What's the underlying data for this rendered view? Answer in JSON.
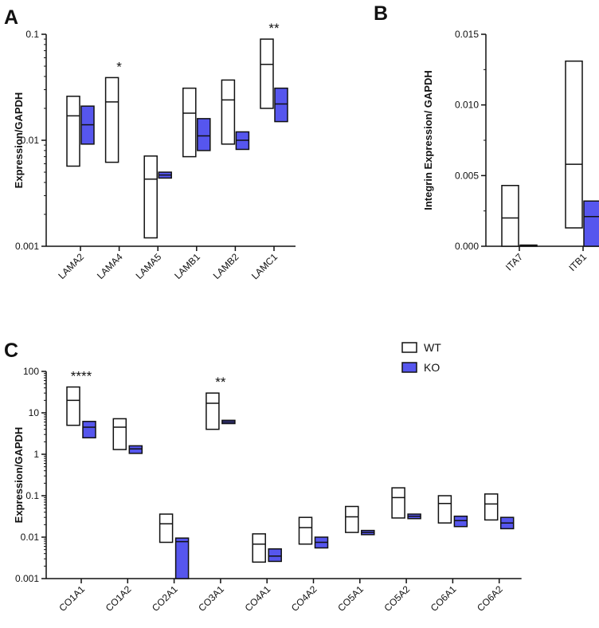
{
  "colors": {
    "wt_fill": "#ffffff",
    "ko_fill": "#5656ee",
    "stroke": "#111111"
  },
  "legend": {
    "wt_label": "WT",
    "ko_label": "KO"
  },
  "chart_data": [
    {
      "panel": "A",
      "type": "floating-bar",
      "scale": "log",
      "ylabel": "Expression/GAPDH",
      "ylim": [
        0.001,
        0.1
      ],
      "yticks": [
        {
          "value": 0.001,
          "label": "0.001"
        },
        {
          "value": 0.01,
          "label": "0.01"
        },
        {
          "value": 0.1,
          "label": "0.1"
        }
      ],
      "categories": [
        "LAMA2",
        "LAMA4",
        "LAMA5",
        "LAMB1",
        "LAMB2",
        "LAMC1"
      ],
      "series": [
        {
          "name": "WT",
          "min": [
            0.0057,
            0.0062,
            0.0012,
            0.007,
            0.0092,
            0.02
          ],
          "mean": [
            0.017,
            0.023,
            0.0043,
            0.018,
            0.024,
            0.052
          ],
          "max": [
            0.026,
            0.039,
            0.0071,
            0.031,
            0.037,
            0.09
          ]
        },
        {
          "name": "KO",
          "min": [
            0.0092,
            null,
            0.0044,
            0.008,
            0.0082,
            0.015
          ],
          "mean": [
            0.014,
            null,
            0.0047,
            0.011,
            0.01,
            0.022
          ],
          "max": [
            0.021,
            null,
            0.005,
            0.016,
            0.012,
            0.031
          ]
        }
      ],
      "annotations": [
        {
          "category": "LAMA4",
          "text": "*"
        },
        {
          "category": "LAMC1",
          "text": "**"
        }
      ]
    },
    {
      "panel": "B",
      "type": "floating-bar",
      "scale": "linear",
      "ylabel": "Integrin  Expression/ GAPDH",
      "ylim": [
        0,
        0.015
      ],
      "yticks": [
        {
          "value": 0,
          "label": "0.000"
        },
        {
          "value": 0.005,
          "label": "0.005"
        },
        {
          "value": 0.01,
          "label": "0.010"
        },
        {
          "value": 0.015,
          "label": "0.015"
        }
      ],
      "categories": [
        "ITA7",
        "ITB1"
      ],
      "series": [
        {
          "name": "WT",
          "min": [
            0.0,
            0.0013
          ],
          "mean": [
            0.002,
            0.0058
          ],
          "max": [
            0.0043,
            0.0131
          ]
        },
        {
          "name": "KO",
          "min": [
            0.0,
            0.0
          ],
          "mean": [
            0.0,
            0.0021
          ],
          "max": [
            5e-05,
            0.0032
          ]
        }
      ],
      "annotations": []
    },
    {
      "panel": "C",
      "type": "floating-bar",
      "scale": "log",
      "ylabel": "Expression/GAPDH",
      "ylim": [
        0.001,
        100
      ],
      "yticks": [
        {
          "value": 0.001,
          "label": "0.001"
        },
        {
          "value": 0.01,
          "label": "0.01"
        },
        {
          "value": 0.1,
          "label": "0.1"
        },
        {
          "value": 1,
          "label": "1"
        },
        {
          "value": 10,
          "label": "10"
        },
        {
          "value": 100,
          "label": "100"
        }
      ],
      "categories": [
        "CO1A1",
        "CO1A2",
        "CO2A1",
        "CO3A1",
        "CO4A1",
        "CO4A2",
        "CO5A1",
        "CO5A2",
        "CO6A1",
        "CO6A2"
      ],
      "series": [
        {
          "name": "WT",
          "min": [
            5.0,
            1.3,
            0.0075,
            4.0,
            0.0025,
            0.0068,
            0.013,
            0.029,
            0.022,
            0.026
          ],
          "mean": [
            20,
            4.5,
            0.021,
            17,
            0.0068,
            0.017,
            0.031,
            0.09,
            0.065,
            0.063
          ],
          "max": [
            42,
            7.2,
            0.036,
            30,
            0.012,
            0.03,
            0.055,
            0.155,
            0.1,
            0.11
          ]
        },
        {
          "name": "KO",
          "min": [
            2.5,
            1.05,
            0.001,
            5.5,
            0.0026,
            0.0055,
            0.0115,
            0.028,
            0.018,
            0.016
          ],
          "mean": [
            4.5,
            1.35,
            0.0078,
            6.0,
            0.0035,
            0.0075,
            0.013,
            0.032,
            0.025,
            0.022
          ],
          "max": [
            6.2,
            1.6,
            0.0095,
            6.6,
            0.0052,
            0.01,
            0.0145,
            0.036,
            0.032,
            0.03
          ]
        }
      ],
      "annotations": [
        {
          "category": "CO1A1",
          "text": "****"
        },
        {
          "category": "CO3A1",
          "text": "**"
        }
      ]
    }
  ]
}
